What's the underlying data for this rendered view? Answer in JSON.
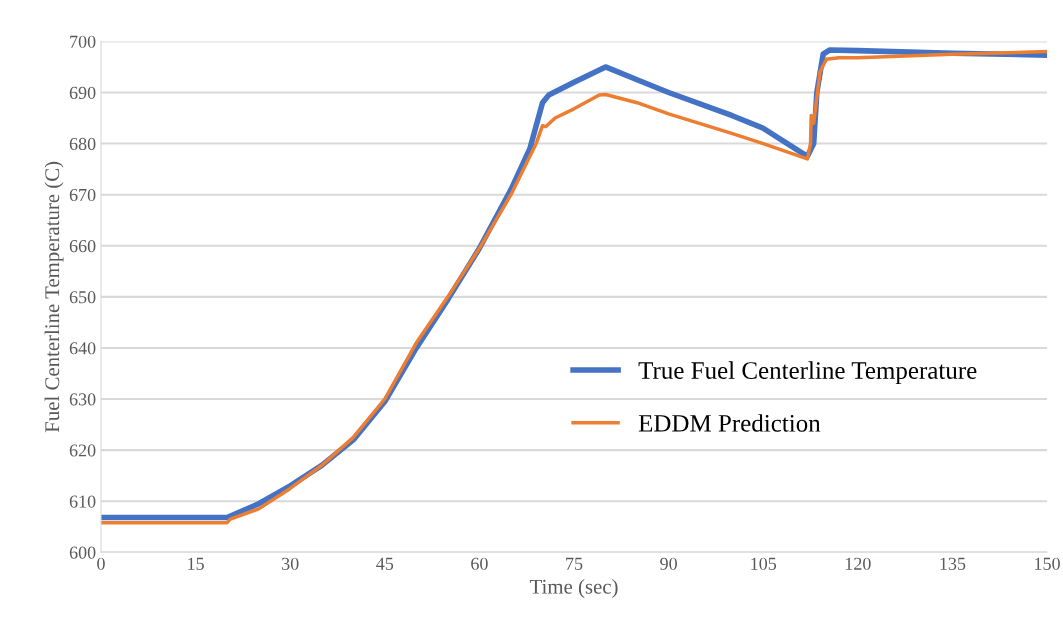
{
  "chart_data": {
    "type": "line",
    "xlabel": "Time (sec)",
    "ylabel": "Fuel Centerline Temperature (C)",
    "xlim": [
      0,
      150
    ],
    "xticks": [
      0,
      15,
      30,
      45,
      60,
      75,
      90,
      105,
      120,
      135,
      150
    ],
    "ylim": [
      600,
      700
    ],
    "yticks": [
      600,
      610,
      620,
      630,
      640,
      650,
      660,
      670,
      680,
      690,
      700
    ],
    "grid": "y",
    "legend": "right",
    "marker": "none",
    "line_style": "solid",
    "series": [
      {
        "name": "True Fuel Centerline Temperature",
        "color": "#4472c4",
        "x": [
          0,
          20,
          25,
          30,
          35,
          40,
          45,
          50,
          55,
          60,
          65,
          68,
          70,
          71,
          75,
          80,
          85,
          90,
          100,
          105,
          112,
          113,
          113.5,
          114.5,
          115.5,
          120,
          135,
          150
        ],
        "values": [
          606.8,
          606.8,
          609.5,
          613,
          617,
          622,
          629.5,
          640,
          649.5,
          659.5,
          671,
          679,
          688,
          689.5,
          692,
          695,
          692.5,
          690,
          685.5,
          683,
          677.5,
          680,
          690,
          697.5,
          698.3,
          698.2,
          697.7,
          697.3
        ]
      },
      {
        "name": "EDDM Prediction",
        "color": "#ed7d31",
        "x": [
          0,
          20,
          20.5,
          25,
          30,
          35,
          40,
          45,
          50,
          55,
          60,
          65,
          69,
          70,
          70.5,
          72,
          75,
          79,
          80,
          85,
          90,
          100,
          105,
          112,
          112.5,
          112.6,
          113,
          114,
          115,
          117,
          120,
          135,
          150
        ],
        "values": [
          605.8,
          605.8,
          606.5,
          608.5,
          612.5,
          617,
          622.5,
          630,
          641,
          650,
          659.5,
          670,
          680,
          683.5,
          683.3,
          685,
          686.8,
          689.5,
          689.6,
          688,
          685.8,
          682,
          680,
          677,
          680,
          685.5,
          684,
          694,
          696.5,
          696.8,
          696.8,
          697.5,
          698
        ]
      }
    ]
  }
}
